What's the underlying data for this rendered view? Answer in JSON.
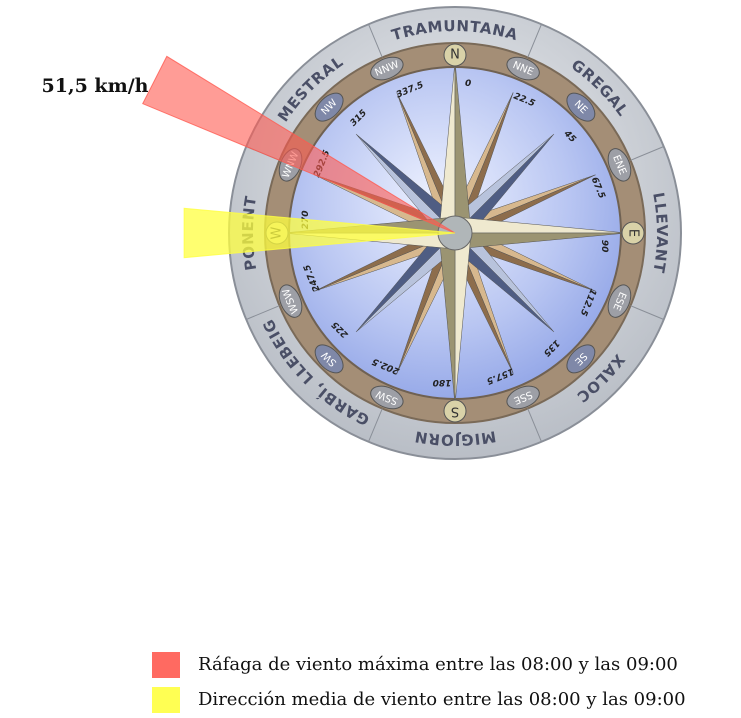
{
  "wind": {
    "gust_label": "51,5 km/h",
    "gust_direction": 297,
    "mean_direction": 270
  },
  "wind_names": [
    {
      "name": "TRAMUNTANA",
      "bearing": 0
    },
    {
      "name": "GREGAL",
      "bearing": 45
    },
    {
      "name": "LLEVANT",
      "bearing": 90
    },
    {
      "name": "XALOC",
      "bearing": 135
    },
    {
      "name": "MIGJORN",
      "bearing": 180
    },
    {
      "name": "GARBÍ, LLEBEIG",
      "bearing": 225
    },
    {
      "name": "PONENT",
      "bearing": 270
    },
    {
      "name": "MESTRAL",
      "bearing": 315
    }
  ],
  "directions": [
    {
      "abbr": "N",
      "degrees": 0
    },
    {
      "abbr": "NNE",
      "degrees": 22.5
    },
    {
      "abbr": "NE",
      "degrees": 45
    },
    {
      "abbr": "ENE",
      "degrees": 67.5
    },
    {
      "abbr": "E",
      "degrees": 90
    },
    {
      "abbr": "ESE",
      "degrees": 112.5
    },
    {
      "abbr": "SE",
      "degrees": 135
    },
    {
      "abbr": "SSE",
      "degrees": 157.5
    },
    {
      "abbr": "S",
      "degrees": 180
    },
    {
      "abbr": "SSW",
      "degrees": 202.5
    },
    {
      "abbr": "SW",
      "degrees": 225
    },
    {
      "abbr": "WSW",
      "degrees": 247.5
    },
    {
      "abbr": "W",
      "degrees": 270
    },
    {
      "abbr": "WNW",
      "degrees": 292.5
    },
    {
      "abbr": "NW",
      "degrees": 315
    },
    {
      "abbr": "NNW",
      "degrees": 337.5
    }
  ],
  "legend": [
    {
      "label": "Ráfaga de viento máxima entre las 08:00 y las 09:00",
      "color": "#ff5a50"
    },
    {
      "label": "Dirección media de viento entre las 08:00 y las 09:00",
      "color": "#ffff40"
    }
  ]
}
